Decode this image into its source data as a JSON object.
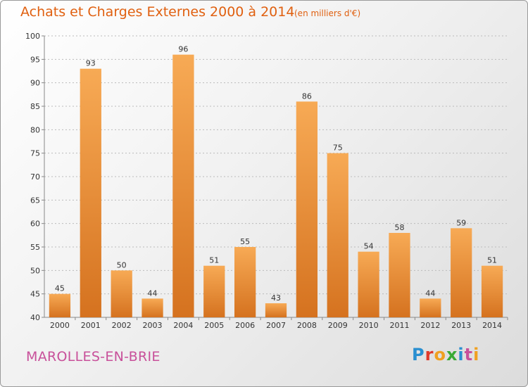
{
  "header": {
    "title": "Achats et Charges Externes 2000 à 2014",
    "subtitle": "(en milliers d'€)"
  },
  "footer": {
    "location": "MAROLLES-EN-BRIE",
    "logo_text": "Proxiti",
    "logo_colors": [
      "#2a8fd0",
      "#e0392a",
      "#f0a020",
      "#3aaa35",
      "#2a8fd0",
      "#c8509a",
      "#f0a020"
    ]
  },
  "colors": {
    "bar_top": "#f7aa55",
    "bar_bottom": "#d5721f",
    "axis": "#888888",
    "grid": "#bbbbbb",
    "text": "#333333"
  },
  "chart_data": {
    "type": "bar",
    "title": "Achats et Charges Externes 2000 à 2014",
    "subtitle": "(en milliers d'€)",
    "xlabel": "",
    "ylabel": "",
    "categories": [
      "2000",
      "2001",
      "2002",
      "2003",
      "2004",
      "2005",
      "2006",
      "2007",
      "2008",
      "2009",
      "2010",
      "2011",
      "2012",
      "2013",
      "2014"
    ],
    "values": [
      45,
      93,
      50,
      44,
      96,
      51,
      55,
      43,
      86,
      75,
      54,
      58,
      44,
      59,
      51
    ],
    "ylim": [
      40,
      100
    ],
    "yticks": [
      40,
      45,
      50,
      55,
      60,
      65,
      70,
      75,
      80,
      85,
      90,
      95,
      100
    ],
    "grid": "horizontal",
    "legend": "none"
  }
}
